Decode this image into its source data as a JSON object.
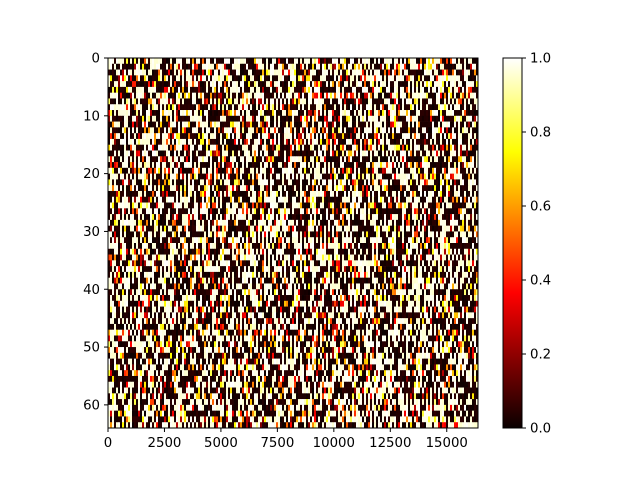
{
  "chart_data": {
    "type": "heatmap",
    "title": "",
    "xlabel": "",
    "ylabel": "",
    "x_range": [
      0,
      16384
    ],
    "y_range": [
      0,
      64
    ],
    "y_inverted": true,
    "x_ticks": [
      0,
      2500,
      5000,
      7500,
      10000,
      12500,
      15000
    ],
    "x_tick_labels": [
      "0",
      "2500",
      "5000",
      "7500",
      "10000",
      "12500",
      "15000"
    ],
    "y_ticks": [
      0,
      10,
      20,
      30,
      40,
      50,
      60
    ],
    "y_tick_labels": [
      "0",
      "10",
      "20",
      "30",
      "40",
      "50",
      "60"
    ],
    "colorbar": {
      "colormap": "hot",
      "range": [
        0.0,
        1.0
      ],
      "ticks": [
        0.0,
        0.2,
        0.4,
        0.6,
        0.8,
        1.0
      ],
      "tick_labels": [
        "0.0",
        "0.2",
        "0.4",
        "0.6",
        "0.8",
        "1.0"
      ]
    },
    "value_distribution": {
      "description_values": "dense noise; mostly values near 0.0 (black) and 1.0 (white), with sparse mid values (red/orange/yellow)",
      "fraction_near_zero": 0.45,
      "fraction_near_one": 0.4,
      "fraction_mid": 0.15
    },
    "grid": false,
    "colors": {
      "hot_stops": [
        "#0a0000",
        "#ff0000",
        "#ffff00",
        "#ffffff"
      ]
    }
  }
}
